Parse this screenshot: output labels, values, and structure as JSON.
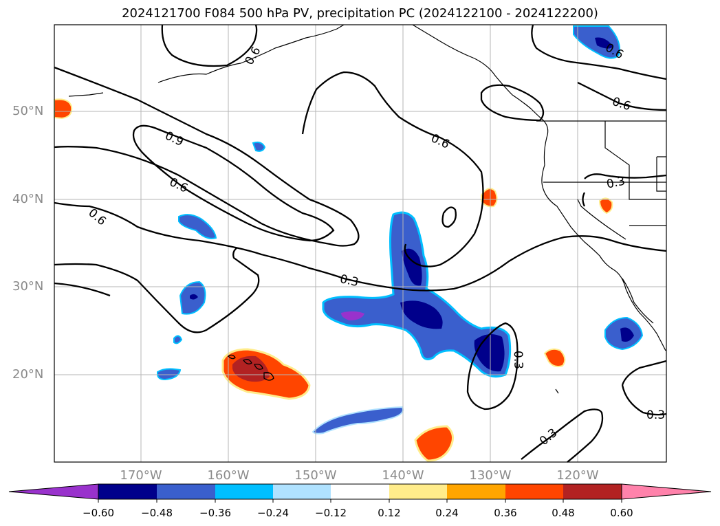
{
  "title": "2024121700 F084 500 hPa PV, precipitation PC (2024122100 - 2024122200)",
  "axes": {
    "lat_labels": [
      "50°N",
      "40°N",
      "30°N",
      "20°N"
    ],
    "lon_labels": [
      "170°W",
      "160°W",
      "150°W",
      "140°W",
      "130°W",
      "120°W"
    ]
  },
  "contour_labels": [
    "0.6",
    "0.9",
    "0.6",
    "0.6",
    "0.6",
    "0.3",
    "0.6",
    "0.6",
    "0.3",
    "0.3",
    "0.3",
    "0.3"
  ],
  "colorbar": {
    "colors": [
      "#9932cc",
      "#00008b",
      "#3a5fcd",
      "#00bfff",
      "#b0e2ff",
      "#ffffff",
      "#ffec8b",
      "#ffa500",
      "#ff4500",
      "#b22222",
      "#ff82ab"
    ],
    "ticks": [
      "−0.60",
      "−0.48",
      "−0.36",
      "−0.24",
      "−0.12",
      "0.12",
      "0.24",
      "0.36",
      "0.48",
      "0.60"
    ]
  }
}
